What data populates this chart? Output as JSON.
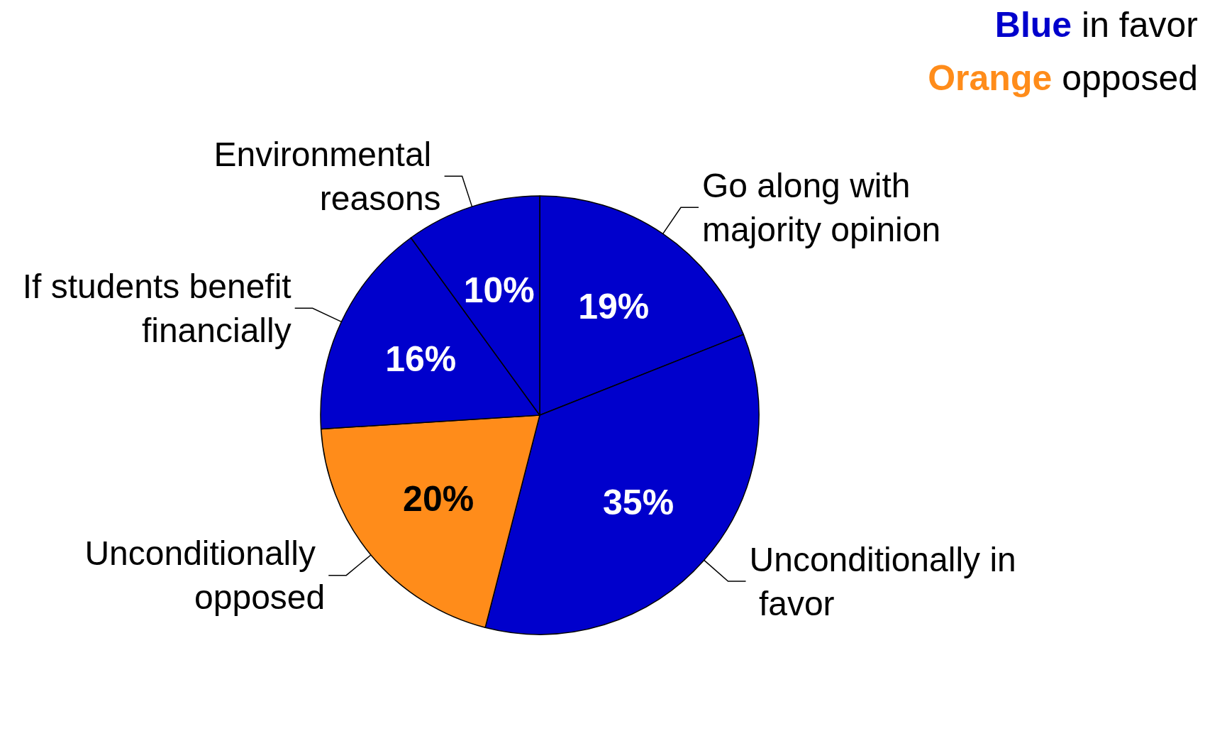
{
  "chart_data": {
    "type": "pie",
    "categories": [
      "Go along with majority opinion",
      "Unconditionally in favor",
      "Unconditionally opposed",
      "If students benefit financially",
      "Environmental reasons"
    ],
    "values": [
      19,
      35,
      20,
      16,
      10
    ],
    "value_labels": [
      "19%",
      "35%",
      "20%",
      "16%",
      "10%"
    ],
    "colors": [
      "#0000cc",
      "#0000cc",
      "#ff8c1a",
      "#0000cc",
      "#0000cc"
    ],
    "legend": false,
    "annotations": [
      "Blue in favor",
      "Orange opposed"
    ]
  }
}
